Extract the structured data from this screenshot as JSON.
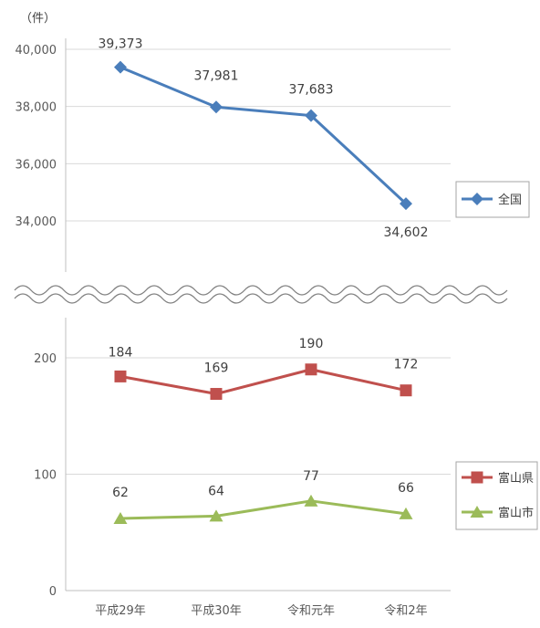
{
  "chart_data": [
    {
      "type": "line",
      "ylabel": "（件）",
      "categories": [
        "平成29年",
        "平成30年",
        "令和元年",
        "令和2年"
      ],
      "ylim": [
        33000,
        40000
      ],
      "yticks": [
        "40,000",
        "38,000",
        "36,000",
        "34,000"
      ],
      "ytick_values": [
        40000,
        38000,
        36000,
        34000
      ],
      "grid": true,
      "legend": "right",
      "series": [
        {
          "name": "全国",
          "color": "#4a7ebb",
          "marker": "diamond",
          "values": [
            39373,
            37981,
            37683,
            34602
          ],
          "labels": [
            "39,373",
            "37,981",
            "37,683",
            "34,602"
          ]
        }
      ]
    },
    {
      "type": "line",
      "categories": [
        "平成29年",
        "平成30年",
        "令和元年",
        "令和2年"
      ],
      "ylim": [
        0,
        200
      ],
      "yticks": [
        "200",
        "100",
        "0"
      ],
      "ytick_values": [
        200,
        100,
        0
      ],
      "grid": true,
      "legend": "right",
      "series": [
        {
          "name": "富山県",
          "color": "#c0504d",
          "marker": "square",
          "values": [
            184,
            169,
            190,
            172
          ],
          "labels": [
            "184",
            "169",
            "190",
            "172"
          ]
        },
        {
          "name": "富山市",
          "color": "#9bbb59",
          "marker": "triangle",
          "values": [
            62,
            64,
            77,
            66
          ],
          "labels": [
            "62",
            "64",
            "77",
            "66"
          ]
        }
      ]
    }
  ]
}
